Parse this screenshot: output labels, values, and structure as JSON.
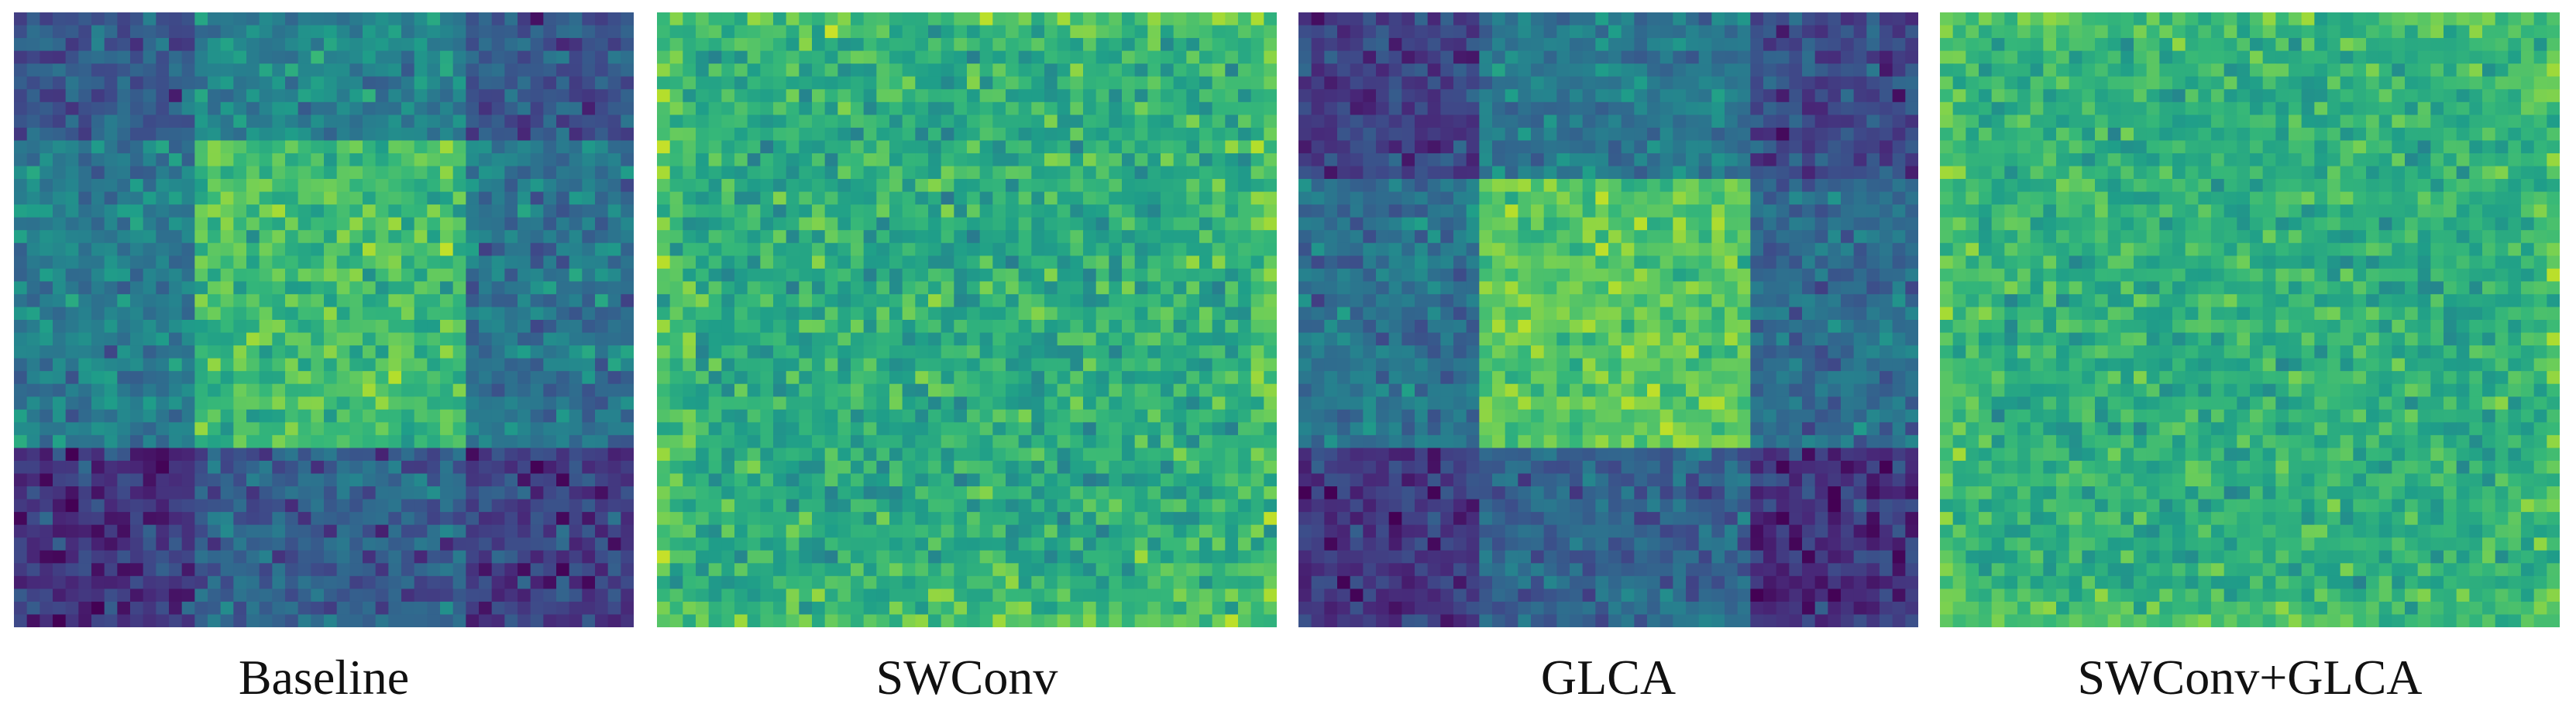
{
  "chart_data": [
    {
      "type": "heatmap",
      "caption": "Baseline",
      "grid_size": 48,
      "colormap": "viridis",
      "value_range": [
        0,
        1
      ],
      "pattern": {
        "kind": "blocks",
        "x_edges": [
          0,
          14,
          35,
          48
        ],
        "y_edges": [
          0,
          10,
          34,
          48
        ],
        "block_means": [
          [
            0.28,
            0.45,
            0.26
          ],
          [
            0.42,
            0.68,
            0.4
          ],
          [
            0.16,
            0.3,
            0.18
          ]
        ],
        "noise": 0.12,
        "seed": 11
      }
    },
    {
      "type": "heatmap",
      "caption": "SWConv",
      "grid_size": 48,
      "colormap": "viridis",
      "value_range": [
        0,
        1
      ],
      "pattern": {
        "kind": "uniform",
        "mean": 0.62,
        "noise": 0.13,
        "edge_boost": 0.1,
        "seed": 23
      }
    },
    {
      "type": "heatmap",
      "caption": "GLCA",
      "grid_size": 48,
      "colormap": "viridis",
      "value_range": [
        0,
        1
      ],
      "pattern": {
        "kind": "blocks",
        "x_edges": [
          0,
          14,
          35,
          48
        ],
        "y_edges": [
          0,
          13,
          34,
          48
        ],
        "block_means": [
          [
            0.2,
            0.4,
            0.22
          ],
          [
            0.38,
            0.74,
            0.36
          ],
          [
            0.16,
            0.32,
            0.14
          ]
        ],
        "noise": 0.11,
        "seed": 37
      }
    },
    {
      "type": "heatmap",
      "caption": "SWConv+GLCA",
      "grid_size": 48,
      "colormap": "viridis",
      "value_range": [
        0,
        1
      ],
      "pattern": {
        "kind": "uniform",
        "mean": 0.63,
        "noise": 0.11,
        "edge_boost": 0.08,
        "seed": 51
      }
    }
  ]
}
